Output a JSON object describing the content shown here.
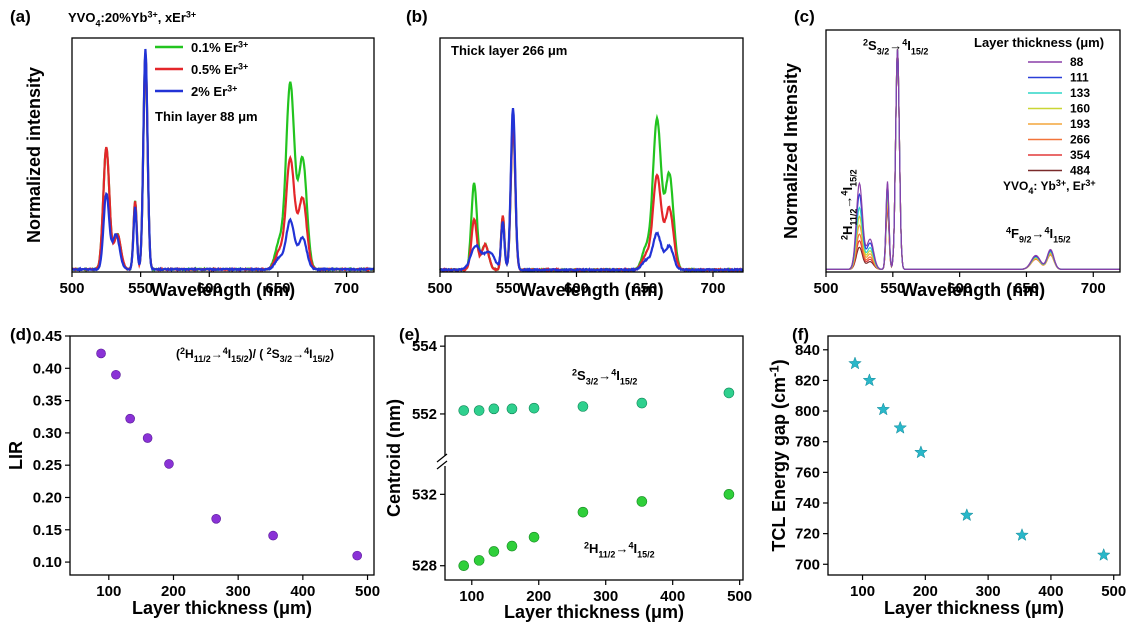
{
  "colors": {
    "green": "#22c41f",
    "red": "#e4262a",
    "blue": "#2233d6",
    "purple": "#8a32d6",
    "teal_green": "#2fd08e",
    "lime_green": "#2fcf3a",
    "cyan": "#29b7c9",
    "series_c": [
      "#8a3fa8",
      "#2a3ed8",
      "#2fd6c7",
      "#c9d634",
      "#f3a63c",
      "#f2743a",
      "#e23a3a",
      "#7a2a2a"
    ]
  },
  "chart_data": [
    {
      "id": "a",
      "type": "line",
      "panel_label": "(a)",
      "title": "YVO4:20%Yb3+, xEr3+",
      "annotation": "Thin layer 88 μm",
      "xlabel": "Wavelength (nm)",
      "ylabel": "Normalized intensity",
      "xlim": [
        500,
        720
      ],
      "ylim": [
        0,
        1.06
      ],
      "xticks": [
        500,
        550,
        600,
        650,
        700
      ],
      "yticks": [],
      "legend_position": "top-center",
      "series": [
        {
          "name": "0.1% Er3+",
          "color_key": "green",
          "peaks": [
            [
              525,
              0.55,
              2.2
            ],
            [
              533,
              0.16,
              2.5
            ],
            [
              546,
              0.31,
              1.2
            ],
            [
              553.5,
              0.98,
              1.5
            ],
            [
              659,
              0.84,
              3.0
            ],
            [
              668,
              0.5,
              3.0
            ],
            [
              651,
              0.12,
              3.0
            ]
          ]
        },
        {
          "name": "0.5% Er3+",
          "color_key": "red",
          "peaks": [
            [
              525,
              0.55,
              2.2
            ],
            [
              533,
              0.16,
              2.5
            ],
            [
              546,
              0.31,
              1.2
            ],
            [
              553.5,
              0.98,
              1.5
            ],
            [
              659,
              0.5,
              3.0
            ],
            [
              668,
              0.32,
              3.0
            ],
            [
              651,
              0.08,
              3.0
            ]
          ]
        },
        {
          "name": "2% Er3+",
          "color_key": "blue",
          "peaks": [
            [
              525,
              0.34,
              2.0
            ],
            [
              532,
              0.16,
              2.6
            ],
            [
              546,
              0.28,
              1.2
            ],
            [
              553.5,
              1.0,
              1.5
            ],
            [
              659,
              0.22,
              3.0
            ],
            [
              668,
              0.14,
              3.0
            ],
            [
              651,
              0.05,
              3.0
            ]
          ]
        }
      ]
    },
    {
      "id": "b",
      "type": "line",
      "panel_label": "(b)",
      "annotation": "Thick layer 266 μm",
      "xlabel": "Wavelength (nm)",
      "ylabel": "",
      "xlim": [
        500,
        722
      ],
      "ylim": [
        0,
        1.3
      ],
      "xticks": [
        500,
        550,
        600,
        650,
        700
      ],
      "yticks": [],
      "series": [
        {
          "name": "0.1% Er3+",
          "color_key": "green",
          "peaks": [
            [
              525,
              0.48,
              2.0
            ],
            [
              533,
              0.14,
              2.6
            ],
            [
              546,
              0.3,
              1.2
            ],
            [
              553.5,
              0.82,
              1.6
            ],
            [
              659,
              0.83,
              3.0
            ],
            [
              668,
              0.53,
              3.0
            ],
            [
              651,
              0.12,
              3.0
            ]
          ]
        },
        {
          "name": "0.5% Er3+",
          "color_key": "red",
          "peaks": [
            [
              525,
              0.28,
              2.0
            ],
            [
              533,
              0.14,
              2.6
            ],
            [
              546,
              0.3,
              1.2
            ],
            [
              553.5,
              0.82,
              1.6
            ],
            [
              659,
              0.52,
              3.0
            ],
            [
              668,
              0.34,
              3.0
            ],
            [
              651,
              0.08,
              3.0
            ]
          ]
        },
        {
          "name": "2% Er3+",
          "color_key": "blue",
          "peaks": [
            [
              526,
              0.13,
              3.5
            ],
            [
              536,
              0.1,
              4.0
            ],
            [
              546,
              0.26,
              1.2
            ],
            [
              553.5,
              0.9,
              1.6
            ],
            [
              659,
              0.2,
              3.0
            ],
            [
              668,
              0.13,
              3.0
            ],
            [
              651,
              0.05,
              3.0
            ]
          ]
        }
      ]
    },
    {
      "id": "c",
      "type": "line",
      "panel_label": "(c)",
      "xlabel": "Wavelength (nm)",
      "ylabel": "Normalized Intensity",
      "xlim": [
        500,
        720
      ],
      "ylim": [
        0,
        1.1
      ],
      "xticks": [
        500,
        550,
        600,
        650,
        700
      ],
      "yticks": [],
      "legend_title": "Layer thickness (μm)",
      "legend_position": "top-right",
      "annotations": {
        "s32": "2S3/2→4I15/2",
        "h112": "2H11/2→4I15/2",
        "f92": "4F9/2→4I15/2",
        "host": "YVO4: Yb3+, Er3+"
      },
      "series_names": [
        "88",
        "111",
        "133",
        "160",
        "193",
        "266",
        "354",
        "484"
      ],
      "h_heights": [
        0.39,
        0.34,
        0.28,
        0.24,
        0.2,
        0.16,
        0.13,
        0.1
      ],
      "g_heights": [
        0.4,
        0.39,
        0.37,
        0.35,
        0.33,
        0.31,
        0.3,
        0.28
      ],
      "r_heights": [
        0.09,
        0.085,
        0.08,
        0.075,
        0.07,
        0.065,
        0.07,
        0.08
      ]
    },
    {
      "id": "d",
      "type": "scatter",
      "panel_label": "(d)",
      "annotation": "(2H11/2→4I15/2)/ (2S3/2→4I15/2)",
      "xlabel": "Layer thickness (μm)",
      "ylabel": "LIR",
      "xlim": [
        40,
        510
      ],
      "ylim": [
        0.08,
        0.45
      ],
      "xticks": [
        100,
        200,
        300,
        400,
        500
      ],
      "yticks": [
        0.1,
        0.15,
        0.2,
        0.25,
        0.3,
        0.35,
        0.4,
        0.45
      ],
      "yticklabels": [
        "0.10",
        "0.15",
        "0.20",
        "0.25",
        "0.30",
        "0.35",
        "0.40",
        "0.45"
      ],
      "color_key": "purple",
      "x": [
        88,
        111,
        133,
        160,
        193,
        266,
        354,
        484
      ],
      "y": [
        0.423,
        0.39,
        0.322,
        0.292,
        0.252,
        0.167,
        0.141,
        0.11
      ]
    },
    {
      "id": "e",
      "type": "scatter",
      "panel_label": "(e)",
      "xlabel": "Layer thickness (μm)",
      "ylabel": "Centroid (nm)",
      "xlim": [
        60,
        505
      ],
      "xticks": [
        100,
        200,
        300,
        400,
        500
      ],
      "upper": {
        "ylim": [
          550.7,
          554.3
        ],
        "yticks": [
          552,
          554
        ],
        "label": "2S3/2→4I15/2",
        "color_key": "teal_green",
        "y": [
          552.1,
          552.1,
          552.15,
          552.15,
          552.17,
          552.22,
          552.32,
          552.62
        ]
      },
      "lower": {
        "ylim": [
          527.2,
          533.7
        ],
        "yticks": [
          528,
          532
        ],
        "label": "2H11/2→4I15/2",
        "color_key": "lime_green",
        "y": [
          528.0,
          528.3,
          528.8,
          529.1,
          529.6,
          531.0,
          531.6,
          532.0
        ]
      },
      "x": [
        88,
        111,
        133,
        160,
        193,
        266,
        354,
        484
      ]
    },
    {
      "id": "f",
      "type": "scatter",
      "panel_label": "(f)",
      "xlabel": "Layer thickness (μm)",
      "ylabel": "TCL Energy gap (cm-1)",
      "xlim": [
        45,
        510
      ],
      "ylim": [
        693,
        849
      ],
      "xticks": [
        100,
        200,
        300,
        400,
        500
      ],
      "yticks": [
        700,
        720,
        740,
        760,
        780,
        800,
        820,
        840
      ],
      "color_key": "cyan",
      "x": [
        88,
        111,
        133,
        160,
        193,
        266,
        354,
        484
      ],
      "y": [
        831,
        820,
        801,
        789,
        773,
        732,
        719,
        706
      ]
    }
  ]
}
